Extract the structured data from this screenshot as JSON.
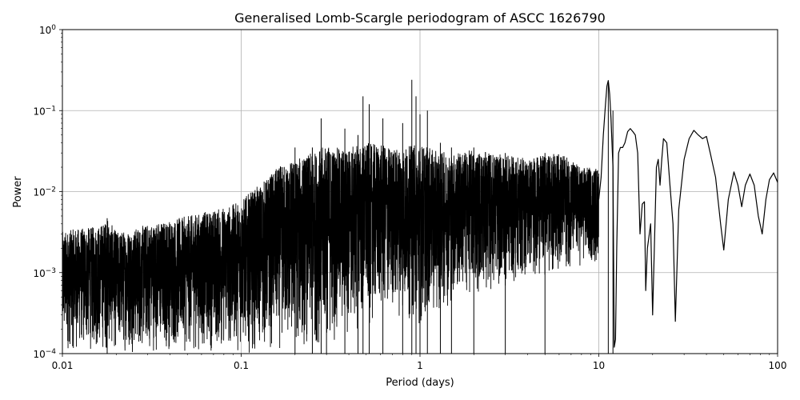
{
  "chart_data": {
    "type": "line",
    "title": "Generalised Lomb-Scargle periodogram of ASCC 1626790",
    "xlabel": "Period (days)",
    "ylabel": "Power",
    "x_scale": "log",
    "y_scale": "log",
    "xlim": [
      0.01,
      100
    ],
    "ylim": [
      0.0001,
      1
    ],
    "grid": true,
    "x_ticks": [
      {
        "value": 0.01,
        "label": "0.01"
      },
      {
        "value": 0.1,
        "label": "0.1"
      },
      {
        "value": 1,
        "label": "1"
      },
      {
        "value": 10,
        "label": "10"
      },
      {
        "value": 100,
        "label": "100"
      }
    ],
    "y_ticks": [
      {
        "value": 0.0001,
        "base": "10",
        "exp": "−4"
      },
      {
        "value": 0.001,
        "base": "10",
        "exp": "−3"
      },
      {
        "value": 0.01,
        "base": "10",
        "exp": "−2"
      },
      {
        "value": 0.1,
        "base": "10",
        "exp": "−1"
      },
      {
        "value": 1,
        "base": "10",
        "exp": "0"
      }
    ],
    "line_color": "#000000",
    "series": [
      {
        "description_free": true,
        "envelope_upper": [
          [
            0.01,
            0.0032
          ],
          [
            0.012,
            0.0035
          ],
          [
            0.014,
            0.0036
          ],
          [
            0.016,
            0.0038
          ],
          [
            0.018,
            0.0046
          ],
          [
            0.02,
            0.0032
          ],
          [
            0.025,
            0.0035
          ],
          [
            0.03,
            0.004
          ],
          [
            0.04,
            0.0045
          ],
          [
            0.05,
            0.005
          ],
          [
            0.06,
            0.0055
          ],
          [
            0.07,
            0.006
          ],
          [
            0.08,
            0.0065
          ],
          [
            0.09,
            0.007
          ],
          [
            0.1,
            0.008
          ],
          [
            0.12,
            0.011
          ],
          [
            0.14,
            0.015
          ],
          [
            0.16,
            0.02
          ],
          [
            0.18,
            0.023
          ],
          [
            0.2,
            0.025
          ],
          [
            0.25,
            0.03
          ],
          [
            0.3,
            0.038
          ],
          [
            0.35,
            0.035
          ],
          [
            0.4,
            0.035
          ],
          [
            0.5,
            0.04
          ],
          [
            0.6,
            0.038
          ],
          [
            0.7,
            0.035
          ],
          [
            0.8,
            0.035
          ],
          [
            1.0,
            0.04
          ],
          [
            1.2,
            0.032
          ],
          [
            1.5,
            0.03
          ],
          [
            2.0,
            0.033
          ],
          [
            2.5,
            0.03
          ],
          [
            3.0,
            0.028
          ],
          [
            4.0,
            0.026
          ],
          [
            5.0,
            0.028
          ],
          [
            6.0,
            0.03
          ],
          [
            7.0,
            0.025
          ],
          [
            8.0,
            0.02
          ],
          [
            9.0,
            0.02
          ],
          [
            10.0,
            0.02
          ]
        ],
        "envelope_lower": [
          [
            0.01,
            0.0001
          ],
          [
            0.2,
            0.0001
          ],
          [
            0.3,
            0.00012
          ],
          [
            0.4,
            0.00015
          ],
          [
            0.5,
            0.0002
          ],
          [
            0.7,
            0.0003
          ],
          [
            1.0,
            0.0002
          ],
          [
            1.5,
            0.0004
          ],
          [
            2.0,
            0.0005
          ],
          [
            3.0,
            0.0006
          ],
          [
            4.0,
            0.0008
          ],
          [
            5.0,
            0.0009
          ],
          [
            6.0,
            0.001
          ],
          [
            8.0,
            0.0011
          ],
          [
            10.0,
            0.0012
          ]
        ],
        "peaks": [
          [
            0.0178,
            0.0047
          ],
          [
            0.2,
            0.035
          ],
          [
            0.25,
            0.035
          ],
          [
            0.28,
            0.08
          ],
          [
            0.3,
            0.03
          ],
          [
            0.38,
            0.06
          ],
          [
            0.45,
            0.05
          ],
          [
            0.48,
            0.15
          ],
          [
            0.52,
            0.12
          ],
          [
            0.62,
            0.08
          ],
          [
            0.8,
            0.07
          ],
          [
            0.9,
            0.24
          ],
          [
            0.95,
            0.15
          ],
          [
            1.0,
            0.09
          ],
          [
            1.1,
            0.1
          ],
          [
            1.3,
            0.04
          ],
          [
            1.5,
            0.035
          ],
          [
            2.0,
            0.035
          ],
          [
            3.0,
            0.03
          ],
          [
            5.0,
            0.03
          ],
          [
            11.3,
            0.23
          ],
          [
            12.0,
            0.1
          ]
        ],
        "tail_curve": [
          [
            10.0,
            0.008
          ],
          [
            10.3,
            0.015
          ],
          [
            10.6,
            0.05
          ],
          [
            10.9,
            0.12
          ],
          [
            11.1,
            0.2
          ],
          [
            11.3,
            0.235
          ],
          [
            11.5,
            0.16
          ],
          [
            11.7,
            0.08
          ],
          [
            12.0,
            0.02
          ],
          [
            12.2,
            0.00012
          ],
          [
            12.4,
            0.00015
          ],
          [
            12.6,
            0.002
          ],
          [
            12.9,
            0.03
          ],
          [
            13.2,
            0.035
          ],
          [
            13.6,
            0.035
          ],
          [
            14.0,
            0.04
          ],
          [
            14.5,
            0.055
          ],
          [
            15.0,
            0.06
          ],
          [
            15.5,
            0.055
          ],
          [
            16.0,
            0.05
          ],
          [
            16.5,
            0.03
          ],
          [
            17.0,
            0.003
          ],
          [
            17.5,
            0.007
          ],
          [
            18.0,
            0.0075
          ],
          [
            18.3,
            0.0006
          ],
          [
            18.7,
            0.002
          ],
          [
            19.5,
            0.004
          ],
          [
            20.0,
            0.0003
          ],
          [
            21.0,
            0.02
          ],
          [
            21.5,
            0.025
          ],
          [
            22.0,
            0.012
          ],
          [
            22.5,
            0.025
          ],
          [
            23.0,
            0.045
          ],
          [
            24.0,
            0.04
          ],
          [
            25.0,
            0.012
          ],
          [
            26.0,
            0.004
          ],
          [
            26.8,
            0.00025
          ],
          [
            28.0,
            0.006
          ],
          [
            30.0,
            0.025
          ],
          [
            32.0,
            0.045
          ],
          [
            34.0,
            0.057
          ],
          [
            36.0,
            0.05
          ],
          [
            38.0,
            0.045
          ],
          [
            40.0,
            0.048
          ],
          [
            42.0,
            0.03
          ],
          [
            45.0,
            0.015
          ],
          [
            48.0,
            0.004
          ],
          [
            50.0,
            0.0019
          ],
          [
            53.0,
            0.008
          ],
          [
            57.0,
            0.0175
          ],
          [
            60.0,
            0.012
          ],
          [
            63.0,
            0.0065
          ],
          [
            66.0,
            0.012
          ],
          [
            70.0,
            0.0165
          ],
          [
            74.0,
            0.012
          ],
          [
            78.0,
            0.005
          ],
          [
            82.0,
            0.003
          ],
          [
            86.0,
            0.008
          ],
          [
            90.0,
            0.014
          ],
          [
            95.0,
            0.017
          ],
          [
            100.0,
            0.013
          ]
        ]
      }
    ]
  }
}
